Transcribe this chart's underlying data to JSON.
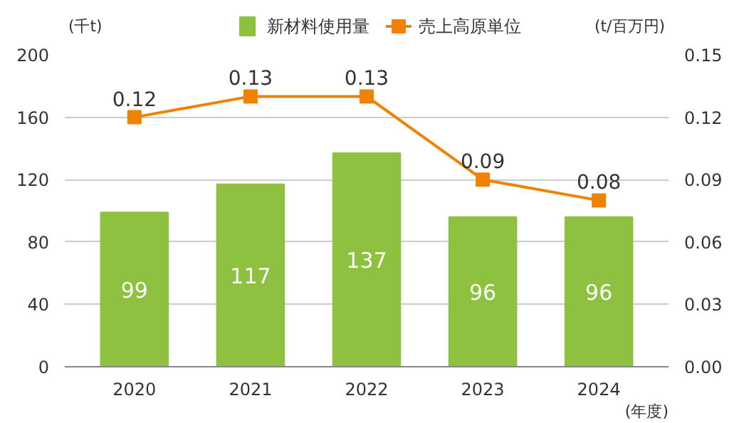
{
  "chart_data": {
    "type": "bar",
    "categories": [
      "2020",
      "2021",
      "2022",
      "2023",
      "2024"
    ],
    "series": [
      {
        "name": "新材料使用量",
        "color": "#8dc13f",
        "values": [
          99,
          117,
          137,
          96,
          96
        ]
      },
      {
        "name": "売上高原単位",
        "type": "line",
        "axis": "y2",
        "color": "#ef8200",
        "marker": "square",
        "values": [
          0.12,
          0.13,
          0.13,
          0.09,
          0.08
        ]
      }
    ],
    "ylabel": "(千t)",
    "y2label": "(t/百万円)",
    "xlabel": "(年度)",
    "ylim": [
      0,
      200
    ],
    "yticks": [
      0,
      40,
      80,
      120,
      160,
      200
    ],
    "y2lim": [
      0,
      0.15
    ],
    "y2ticks": [
      {
        "value": 0,
        "label": "0.00"
      },
      {
        "value": 0.03,
        "label": "0.03"
      },
      {
        "value": 0.06,
        "label": "0.06"
      },
      {
        "value": 0.09,
        "label": "0.09"
      },
      {
        "value": 0.12,
        "label": "0.12"
      },
      {
        "value": 0.15,
        "label": "0.15"
      }
    ],
    "data_labels": true,
    "grid": "y",
    "legend": "top"
  }
}
